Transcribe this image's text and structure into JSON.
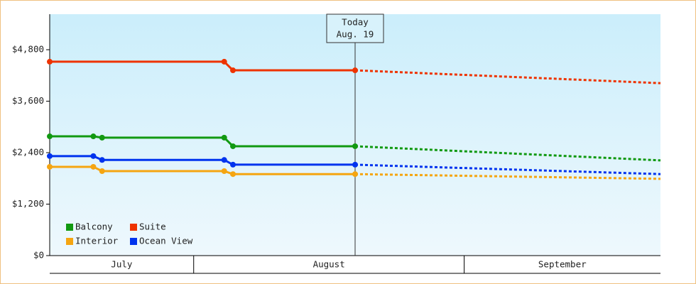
{
  "chart_data": {
    "type": "line",
    "xlim": [
      0,
      70
    ],
    "ylim": [
      0,
      5628
    ],
    "yticks": [
      {
        "value": 0,
        "label": "$0"
      },
      {
        "value": 1200,
        "label": "$1,200"
      },
      {
        "value": 2400,
        "label": "$2,400"
      },
      {
        "value": 3600,
        "label": "$3,600"
      },
      {
        "value": 4800,
        "label": "$4,800"
      }
    ],
    "month_bands": [
      {
        "label": "July",
        "start": 0,
        "end": 16.5
      },
      {
        "label": "August",
        "start": 16.5,
        "end": 47.5
      },
      {
        "label": "September",
        "start": 47.5,
        "end": 70
      }
    ],
    "today": {
      "lines": [
        "Today",
        "Aug. 19"
      ],
      "x": 35
    },
    "series": [
      {
        "name": "Balcony",
        "color": "#119911",
        "x": [
          0,
          5,
          6,
          20,
          21,
          35
        ],
        "values": [
          2780,
          2780,
          2750,
          2750,
          2550,
          2550
        ],
        "forecast": {
          "x": [
            35,
            70
          ],
          "values": [
            2550,
            2220
          ]
        }
      },
      {
        "name": "Suite",
        "color": "#ee3300",
        "x": [
          0,
          20,
          21,
          35
        ],
        "values": [
          4520,
          4520,
          4320,
          4320
        ],
        "forecast": {
          "x": [
            35,
            70
          ],
          "values": [
            4320,
            4020
          ]
        }
      },
      {
        "name": "Interior",
        "color": "#f5a511",
        "x": [
          0,
          5,
          6,
          20,
          21,
          35
        ],
        "values": [
          2070,
          2070,
          1970,
          1970,
          1900,
          1900
        ],
        "forecast": {
          "x": [
            35,
            70
          ],
          "values": [
            1900,
            1790
          ]
        }
      },
      {
        "name": "Ocean View",
        "color": "#0033ee",
        "x": [
          0,
          5,
          6,
          20,
          21,
          35
        ],
        "values": [
          2320,
          2320,
          2230,
          2230,
          2120,
          2120
        ],
        "forecast": {
          "x": [
            35,
            70
          ],
          "values": [
            2120,
            1900
          ]
        }
      }
    ]
  }
}
